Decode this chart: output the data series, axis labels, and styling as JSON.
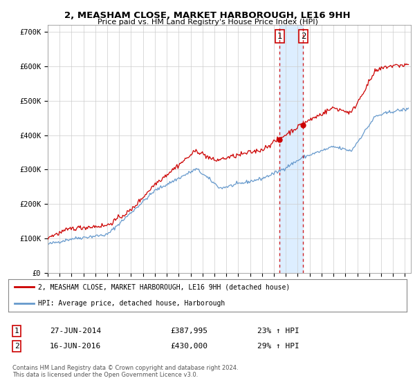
{
  "title": "2, MEASHAM CLOSE, MARKET HARBOROUGH, LE16 9HH",
  "subtitle": "Price paid vs. HM Land Registry's House Price Index (HPI)",
  "legend_line1": "2, MEASHAM CLOSE, MARKET HARBOROUGH, LE16 9HH (detached house)",
  "legend_line2": "HPI: Average price, detached house, Harborough",
  "transaction1_label": "1",
  "transaction1_date": "27-JUN-2014",
  "transaction1_price": "£387,995",
  "transaction1_hpi": "23% ↑ HPI",
  "transaction2_label": "2",
  "transaction2_date": "16-JUN-2016",
  "transaction2_price": "£430,000",
  "transaction2_hpi": "29% ↑ HPI",
  "footer": "Contains HM Land Registry data © Crown copyright and database right 2024.\nThis data is licensed under the Open Government Licence v3.0.",
  "red_color": "#cc0000",
  "blue_color": "#6699cc",
  "shade_color": "#ddeeff",
  "marker1_date_num": 2014.49,
  "marker1_value": 387995,
  "marker2_date_num": 2016.46,
  "marker2_value": 430000,
  "vline1_date_num": 2014.49,
  "vline2_date_num": 2016.46,
  "ylim_min": 0,
  "ylim_max": 720000,
  "xlim_min": 1995.0,
  "xlim_max": 2025.5,
  "background_color": "#ffffff",
  "grid_color": "#cccccc",
  "yticks": [
    0,
    100000,
    200000,
    300000,
    400000,
    500000,
    600000,
    700000
  ],
  "ytick_labels": [
    "£0",
    "£100K",
    "£200K",
    "£300K",
    "£400K",
    "£500K",
    "£600K",
    "£700K"
  ],
  "xticks": [
    1995,
    1996,
    1997,
    1998,
    1999,
    2000,
    2001,
    2002,
    2003,
    2004,
    2005,
    2006,
    2007,
    2008,
    2009,
    2010,
    2011,
    2012,
    2013,
    2014,
    2015,
    2016,
    2017,
    2018,
    2019,
    2020,
    2021,
    2022,
    2023,
    2024,
    2025
  ]
}
